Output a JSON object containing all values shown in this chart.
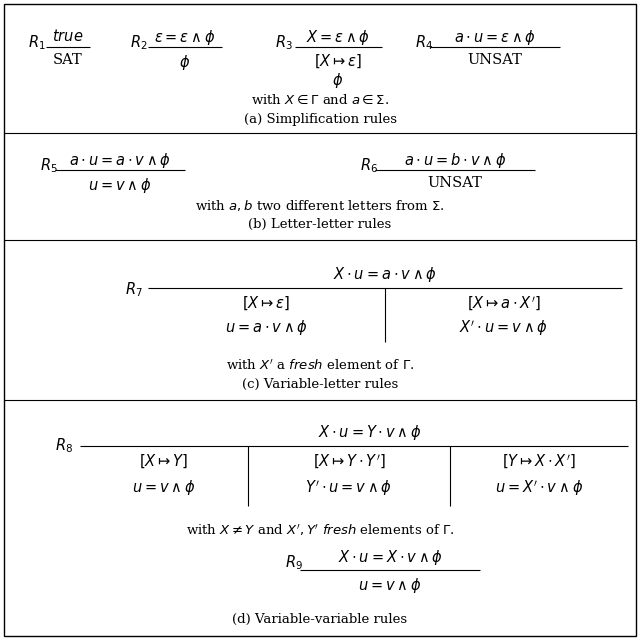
{
  "background_color": "#ffffff",
  "border_color": "#000000",
  "figsize": [
    6.4,
    6.4
  ],
  "dpi": 100,
  "sections": {
    "a_label": "(a) Simplification rules",
    "b_label": "(b) Letter-letter rules",
    "c_label": "(c) Variable-letter rules",
    "d_label": "(d) Variable-variable rules"
  },
  "font_size_main": 10.5,
  "font_size_label": 9.5
}
